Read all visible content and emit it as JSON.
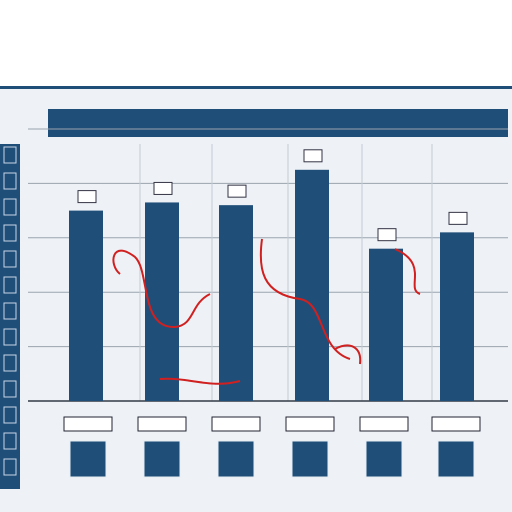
{
  "header": {
    "line1": "",
    "line2": "",
    "line3": ""
  },
  "colors": {
    "bar": "#1f4e79",
    "title_bar": "#1f4e79",
    "side_strip": "#1f4e79",
    "grid": "#9aa3ad",
    "annotation": "#d02020"
  },
  "chart_data": {
    "type": "bar",
    "title": "",
    "categories": [
      "",
      "",
      "",
      "",
      "",
      "",
      ""
    ],
    "values": [
      70,
      73,
      72,
      85,
      56,
      62,
      0
    ],
    "ylim": [
      0,
      100
    ],
    "grid": true,
    "legend": "none"
  }
}
